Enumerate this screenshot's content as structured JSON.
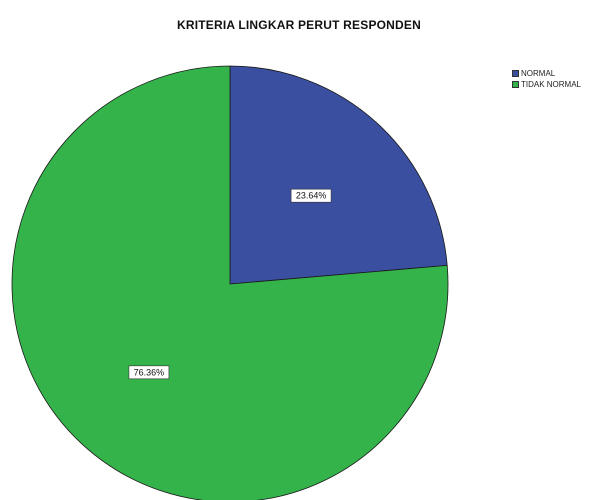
{
  "chart_data": {
    "type": "pie",
    "title": "KRITERIA LINGKAR PERUT RESPONDEN",
    "legend_position": "top-right",
    "start_angle": "12 o'clock, clockwise",
    "slices": [
      {
        "name": "NORMAL",
        "value": 23.64,
        "label": "23.64%",
        "color": "#3b4fa0"
      },
      {
        "name": "TIDAK NORMAL",
        "value": 76.36,
        "label": "76.36%",
        "color": "#34b34a"
      }
    ]
  }
}
